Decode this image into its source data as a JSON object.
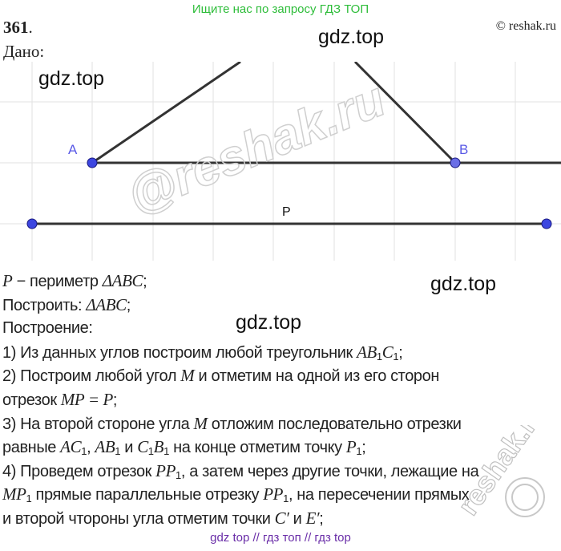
{
  "banner": "Ищите нас по запросу ГДЗ ТОП",
  "problem_number": "361",
  "problem_number_suffix": ".",
  "copyright": "© reshak.ru",
  "given_label": "Дано:",
  "watermarks": {
    "gdz1": "gdz.top",
    "gdz2": "gdz.top",
    "gdz3": "gdz.top",
    "gdz4": "gdz.top",
    "reshak": "@reshak.ru",
    "reshak2": "reshak.ru"
  },
  "diagram": {
    "label_a": "A",
    "label_b": "B",
    "label_p": "P",
    "point_color": "#3c46e0",
    "label_color": "#5a5ae6",
    "line_color": "#333333"
  },
  "lines": [
    [
      {
        "t": "P",
        "i": true
      },
      {
        "t": " − периметр "
      },
      {
        "t": "ΔABC",
        "i": true
      },
      {
        "t": ";"
      }
    ],
    [
      {
        "t": "Построить: "
      },
      {
        "t": "ΔABC",
        "i": true
      },
      {
        "t": ";"
      }
    ],
    [
      {
        "t": "Построение:"
      }
    ],
    [
      {
        "t": "1) Из данных углов построим любой треугольник "
      },
      {
        "t": "AB",
        "i": true
      },
      {
        "t": "1",
        "sub": true
      },
      {
        "t": "C",
        "i": true
      },
      {
        "t": "1",
        "sub": true
      },
      {
        "t": ";"
      }
    ],
    [
      {
        "t": "2) Построим любой угол "
      },
      {
        "t": "M",
        "i": true
      },
      {
        "t": " и отметим на одной из его сторон"
      }
    ],
    [
      {
        "t": "отрезок "
      },
      {
        "t": "MP = P",
        "i": true
      },
      {
        "t": ";"
      }
    ],
    [
      {
        "t": "3) На второй стороне угла "
      },
      {
        "t": "M",
        "i": true
      },
      {
        "t": " отложим последовательно отрезки"
      }
    ],
    [
      {
        "t": "равные "
      },
      {
        "t": "AC",
        "i": true
      },
      {
        "t": "1",
        "sub": true
      },
      {
        "t": ", "
      },
      {
        "t": "AB",
        "i": true
      },
      {
        "t": "1",
        "sub": true
      },
      {
        "t": " и "
      },
      {
        "t": "C",
        "i": true
      },
      {
        "t": "1",
        "sub": true
      },
      {
        "t": "B",
        "i": true
      },
      {
        "t": "1",
        "sub": true
      },
      {
        "t": " на конце отметим точку "
      },
      {
        "t": "P",
        "i": true
      },
      {
        "t": "1",
        "sub": true
      },
      {
        "t": ";"
      }
    ],
    [
      {
        "t": "4) Проведем отрезок "
      },
      {
        "t": "PP",
        "i": true
      },
      {
        "t": "1",
        "sub": true
      },
      {
        "t": ", а затем через другие точки, лежащие на"
      }
    ],
    [
      {
        "t": "MP",
        "i": true
      },
      {
        "t": "1",
        "sub": true
      },
      {
        "t": " прямые параллельные отрезку "
      },
      {
        "t": "PP",
        "i": true
      },
      {
        "t": "1",
        "sub": true
      },
      {
        "t": ", на пересечении прямых"
      }
    ],
    [
      {
        "t": "и второй чтороны угла отметим точки "
      },
      {
        "t": "C′",
        "i": true
      },
      {
        "t": " и "
      },
      {
        "t": "E′",
        "i": true
      },
      {
        "t": ";"
      }
    ]
  ],
  "footer": "gdz top  //  гдз топ  //  гдз top"
}
